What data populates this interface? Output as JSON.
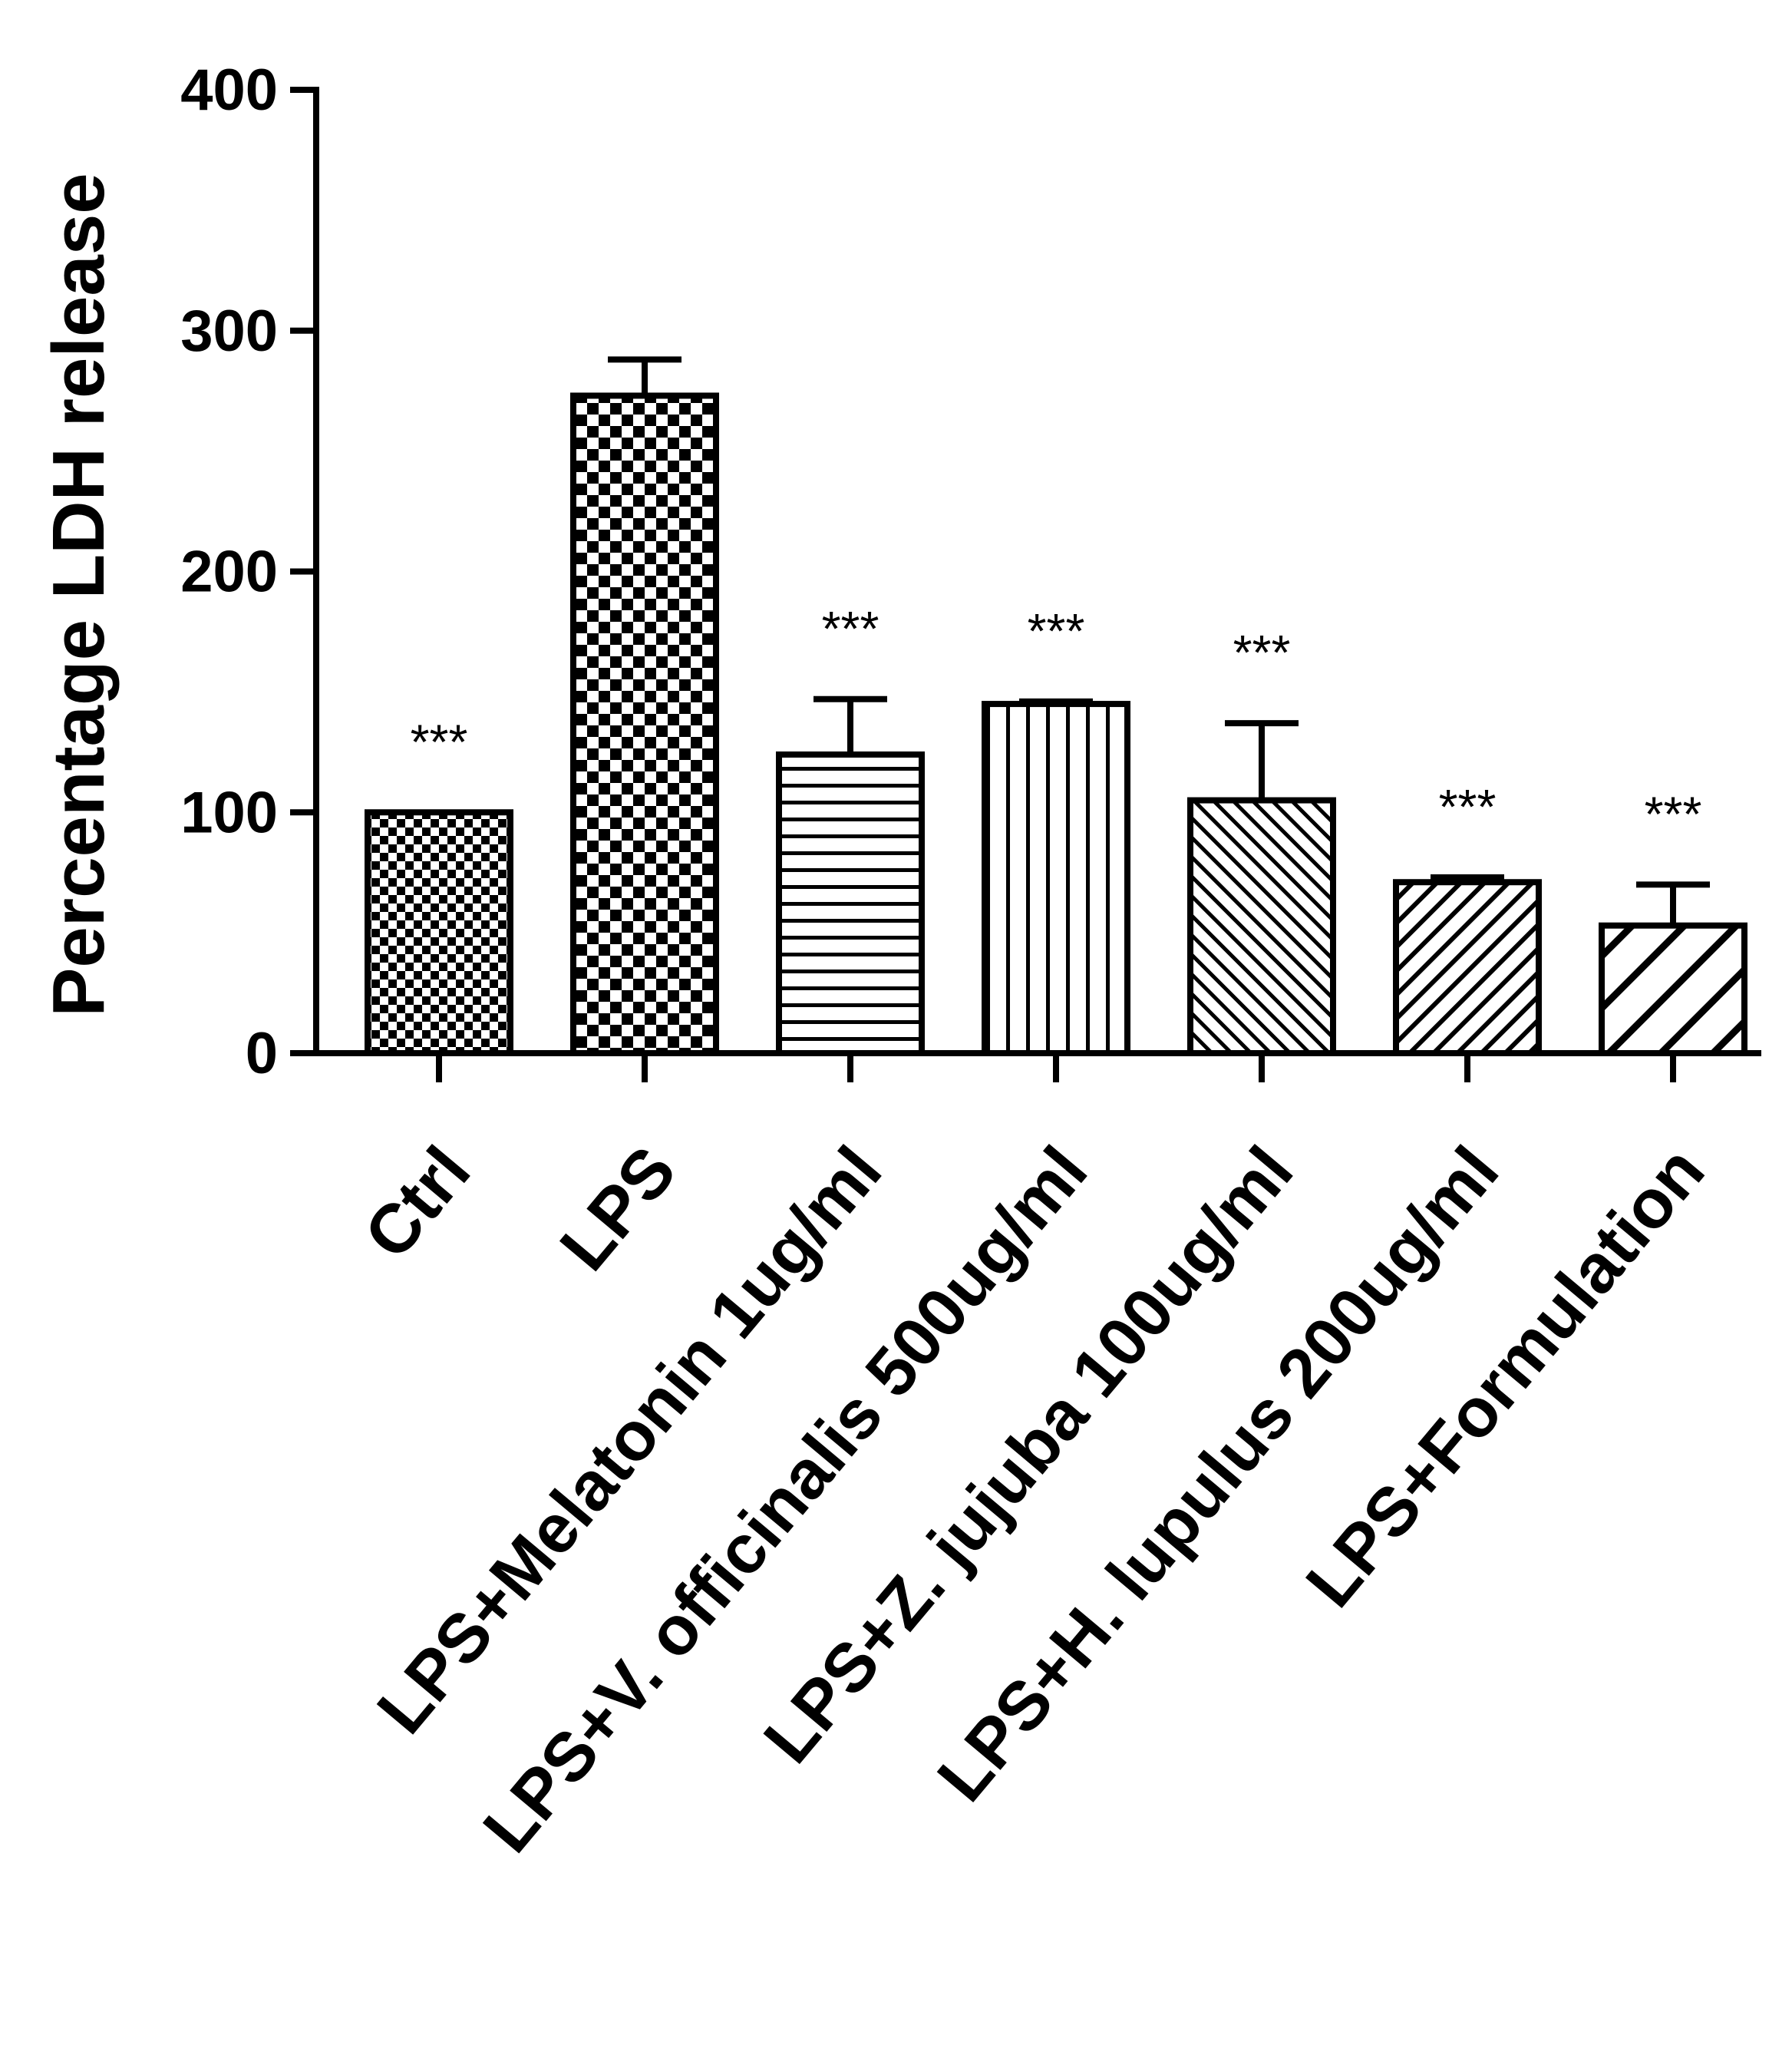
{
  "chart_data": {
    "type": "bar",
    "ylabel": "Percentage LDH release",
    "xlabel": "",
    "ylim": [
      0,
      400
    ],
    "yticks": [
      0,
      100,
      200,
      300,
      400
    ],
    "grid": false,
    "categories": [
      "Ctrl",
      "LPS",
      "LPS+Melatonin 1ug/ml",
      "LPS+V. officinalis 500ug/ml",
      "LPS+Z. jujuba 100ug/ml",
      "LPS+H. lupulus 200ug/ml",
      "LPS+Formulation"
    ],
    "values": [
      100,
      273,
      124,
      145,
      105,
      71,
      53
    ],
    "error": [
      0,
      15,
      23,
      1,
      32,
      2,
      17
    ],
    "significance": [
      "***",
      "",
      "***",
      "***",
      "***",
      "***",
      "***"
    ],
    "patterns": [
      "checker-fine",
      "checker-coarse",
      "horizontal-lines",
      "vertical-lines",
      "diagonal-fine",
      "diagonal-medium",
      "diagonal-wide"
    ],
    "colors": {
      "stroke": "#000000",
      "fill": "#ffffff"
    }
  }
}
